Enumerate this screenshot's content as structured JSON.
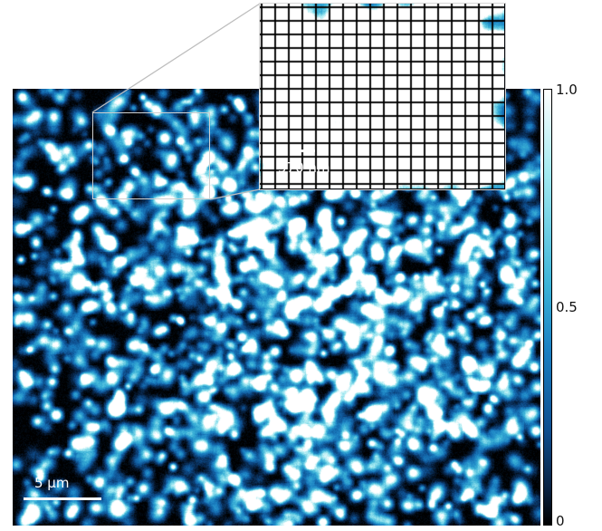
{
  "main_image": {
    "scale_label": "5 μm"
  },
  "inset": {
    "scale_label": "570 nm"
  },
  "colorbar": {
    "labels": {
      "top": "1.0",
      "middle": "0.5",
      "bottom": "0"
    },
    "colors": [
      "#000000",
      "#07203f",
      "#0e4f90",
      "#1a7fc2",
      "#3bb3d8",
      "#9fe8f0",
      "#ffffff"
    ]
  }
}
